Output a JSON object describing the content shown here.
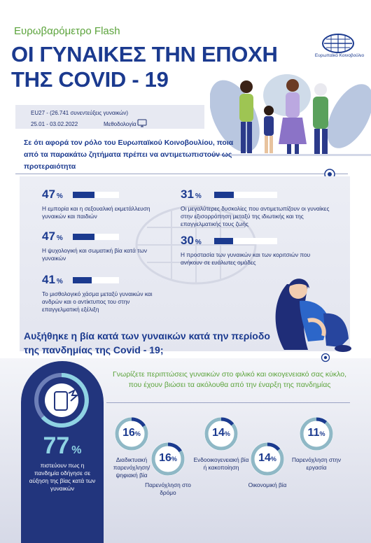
{
  "header": {
    "kicker": "Ευρωβαρόμετρο Flash",
    "title_line1": "ΟΙ ΓΥΝΑΙΚΕΣ ΤΗΝ ΕΠΟΧΗ",
    "title_line2": "ΤΗΣ COVID - 19",
    "logo_text": "Ευρωπαϊκό Κοινοβούλιο"
  },
  "meta": {
    "sample": "EU27 - (26.741 συνεντεύξεις γυναικών)",
    "dates": "25.01 - 03.02.2022",
    "methodology": "Μεθοδολογία"
  },
  "question1": "Σε ότι αφορά τον ρόλο του Ευρωπαϊκού Κοινοβουλίου, ποια από τα παρακάτω ζητήματα πρέπει να αντιμετωπιστούν ως προτεραιότητα",
  "priorities": [
    {
      "value": "47",
      "unit": "%",
      "fraction": 0.47,
      "label": "Η εμπορία και η σεξουαλική εκμετάλλευση γυναικών και παιδιών"
    },
    {
      "value": "47",
      "unit": "%",
      "fraction": 0.47,
      "label": "Η ψυχολογική και σωματική βία κατά των γυναικών"
    },
    {
      "value": "41",
      "unit": "%",
      "fraction": 0.41,
      "label": "Το μισθολογικό χάσμα μεταξύ γυναικών και ανδρών και ο αντίκτυπος του στην επαγγελματική εξέλιξη"
    },
    {
      "value": "31",
      "unit": "%",
      "fraction": 0.31,
      "label": "Οι μεγαλύτερες δυσκολίες που αντιμετωπίζουν οι γυναίκες στην εξισορρόπηση μεταξύ της ιδιωτικής και της επαγγελματικής τους ζωής"
    },
    {
      "value": "30",
      "unit": "%",
      "fraction": 0.3,
      "label": "Η προστασία των γυναικών και των κοριτσιών που ανήκουν σε ευάλωτες ομάδες"
    }
  ],
  "question2": "Αυξήθηκε η βία κατά των γυναικών κατά την περίοδο της πανδημίας της Covid - 19;",
  "violence_increase": {
    "value": "77",
    "unit": "%",
    "label": "πιστεύουν πως η πανδημία οδήγησε σε αύξηση της βίας κατά των γυναικών"
  },
  "question3": "Γνωρίζετε περιπτώσεις γυναικών στο φιλικό και οικογενειακό σας κύκλο, που έχουν βιώσει τα ακόλουθα από την έναρξη της πανδημίας",
  "cases": [
    {
      "value": "16",
      "unit": "%",
      "fraction": 0.16,
      "label": "Διαδικτυακή παρενόχληση/ ψηφιακή βία"
    },
    {
      "value": "16",
      "unit": "%",
      "fraction": 0.16,
      "label": "Παρενόχληση στο δρόμο"
    },
    {
      "value": "14",
      "unit": "%",
      "fraction": 0.14,
      "label": "Ενδοοικογενειακή βία ή κακοποίηση"
    },
    {
      "value": "14",
      "unit": "%",
      "fraction": 0.14,
      "label": "Οικονομική βία"
    },
    {
      "value": "11",
      "unit": "%",
      "fraction": 0.11,
      "label": "Παρενόχληση στην εργασία"
    }
  ],
  "colors": {
    "navy": "#1b3a8f",
    "green": "#5ba33b",
    "teal": "#8fd3e3",
    "ring_track": "#8fb8c6"
  }
}
